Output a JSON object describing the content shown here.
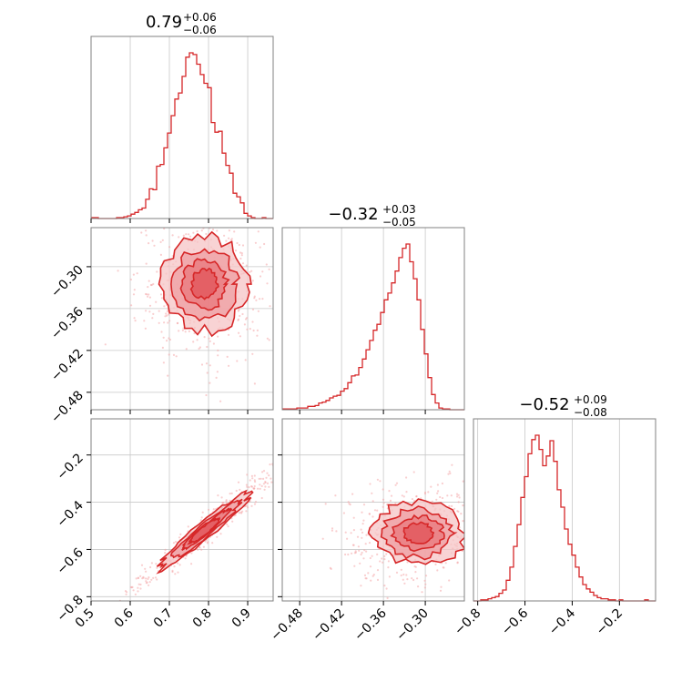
{
  "chart_data": {
    "type": "corner",
    "color": "#d62728",
    "parameters": [
      {
        "title_value": "0.79",
        "err_plus": "+0.06",
        "err_minus": "−0.06",
        "range": [
          0.5,
          0.965
        ],
        "ticks": [
          0.5,
          0.6,
          0.7,
          0.8,
          0.9
        ],
        "tick_labels": [
          "0.5",
          "0.6",
          "0.7",
          "0.8",
          "0.9"
        ]
      },
      {
        "title_value": "−0.32",
        "err_plus": "+0.03",
        "err_minus": "−0.05",
        "range": [
          -0.505,
          -0.244
        ],
        "ticks": [
          -0.48,
          -0.42,
          -0.36,
          -0.3
        ],
        "tick_labels": [
          "−0.48",
          "−0.42",
          "−0.36",
          "−0.30"
        ]
      },
      {
        "title_value": "−0.52",
        "err_plus": "+0.09",
        "err_minus": "−0.08",
        "range": [
          -0.818,
          -0.047
        ],
        "ticks": [
          -0.8,
          -0.6,
          -0.4,
          -0.2
        ],
        "tick_labels": [
          "−0.8",
          "−0.6",
          "−0.4",
          "−0.2"
        ]
      }
    ],
    "histograms": [
      {
        "param": 0,
        "bin_start": 0.5,
        "bin_width": 0.0093,
        "counts": [
          1,
          1,
          0,
          0,
          0,
          0,
          0,
          1,
          1,
          2,
          3,
          5,
          7,
          10,
          12,
          22,
          34,
          33,
          60,
          62,
          81,
          98,
          118,
          137,
          144,
          163,
          185,
          190,
          188,
          177,
          165,
          155,
          150,
          110,
          99,
          100,
          75,
          61,
          52,
          29,
          25,
          18,
          6,
          3,
          1,
          0,
          0,
          1,
          0,
          0
        ]
      },
      {
        "param": 1,
        "bin_start": -0.505,
        "bin_width": 0.00522,
        "counts": [
          1,
          1,
          1,
          1,
          2,
          2,
          2,
          4,
          4,
          5,
          8,
          9,
          11,
          14,
          16,
          17,
          22,
          25,
          32,
          40,
          41,
          50,
          60,
          71,
          82,
          94,
          101,
          115,
          130,
          138,
          150,
          164,
          180,
          191,
          196,
          175,
          155,
          130,
          95,
          66,
          38,
          18,
          8,
          2,
          1,
          1,
          0,
          0,
          0,
          0
        ]
      },
      {
        "param": 2,
        "bin_start": -0.818,
        "bin_width": 0.01542,
        "counts": [
          0,
          0,
          1,
          1,
          2,
          3,
          4,
          7,
          10,
          19,
          31,
          50,
          70,
          95,
          114,
          135,
          148,
          152,
          139,
          124,
          133,
          147,
          128,
          102,
          86,
          66,
          52,
          42,
          31,
          22,
          15,
          11,
          8,
          5,
          3,
          2,
          2,
          1,
          1,
          0,
          1,
          0,
          0,
          0,
          0,
          0,
          0,
          1,
          0,
          0
        ]
      }
    ],
    "scatter_2d": [
      {
        "x_param": 0,
        "y_param": 1,
        "center": [
          0.79,
          -0.325
        ],
        "spread": [
          0.055,
          0.035
        ],
        "correlation": 0.1
      },
      {
        "x_param": 0,
        "y_param": 2,
        "center": [
          0.79,
          -0.52
        ],
        "spread": [
          0.06,
          0.085
        ],
        "correlation": 0.97
      },
      {
        "x_param": 1,
        "y_param": 2,
        "center": [
          -0.31,
          -0.53
        ],
        "spread": [
          0.035,
          0.07
        ],
        "correlation": 0.05
      }
    ],
    "grid": true
  }
}
